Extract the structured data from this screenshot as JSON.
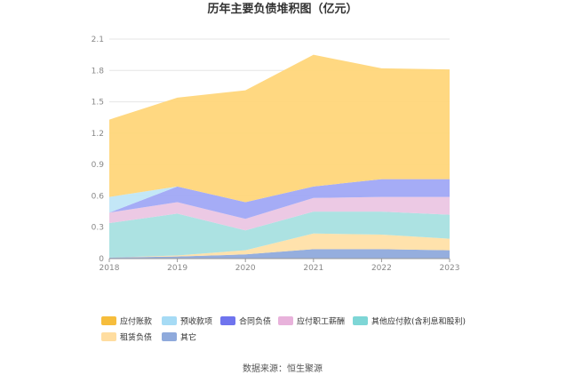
{
  "chart_data": {
    "type": "area",
    "stacked": true,
    "title": "历年主要负债堆积图（亿元）",
    "categories": [
      "2018",
      "2019",
      "2020",
      "2021",
      "2022",
      "2023"
    ],
    "ylim": [
      0,
      2.1
    ],
    "yticks": [
      "0",
      "0.3",
      "0.6",
      "0.9",
      "1.2",
      "1.5",
      "1.8",
      "2.1"
    ],
    "grid": true,
    "legend_position": "bottom",
    "series": [
      {
        "name": "其它",
        "color": "#8FAADC",
        "values": [
          0.01,
          0.02,
          0.04,
          0.09,
          0.09,
          0.08
        ]
      },
      {
        "name": "租赁负债",
        "color": "#FFE0A8",
        "values": [
          0.0,
          0.01,
          0.04,
          0.15,
          0.14,
          0.11
        ]
      },
      {
        "name": "其他应付款(含利息和股利)",
        "color": "#A8E0E0",
        "values": [
          0.33,
          0.4,
          0.19,
          0.21,
          0.22,
          0.23
        ]
      },
      {
        "name": "应付职工薪酬",
        "color": "#EBC6E3",
        "values": [
          0.1,
          0.11,
          0.11,
          0.13,
          0.14,
          0.17
        ]
      },
      {
        "name": "合同负债",
        "color": "#A0A8F5",
        "values": [
          0.0,
          0.15,
          0.16,
          0.11,
          0.17,
          0.17
        ]
      },
      {
        "name": "预收款项",
        "color": "#C0E6F7",
        "values": [
          0.15,
          0.0,
          0.0,
          0.0,
          0.0,
          0.0
        ]
      },
      {
        "name": "应付账款",
        "color": "#FFD67A",
        "values": [
          0.74,
          0.85,
          1.07,
          1.26,
          1.06,
          1.05
        ]
      }
    ],
    "legend_colors": {
      "应付账款": "#F6BD3C",
      "预收款项": "#A6DBF5",
      "合同负债": "#6F74EE",
      "应付职工薪酬": "#E8B2DB",
      "其他应付款(含利息和股利)": "#7ED6D6",
      "租赁负债": "#FFDDA0",
      "其它": "#8FAADC"
    },
    "source": "数据来源：恒生聚源"
  }
}
